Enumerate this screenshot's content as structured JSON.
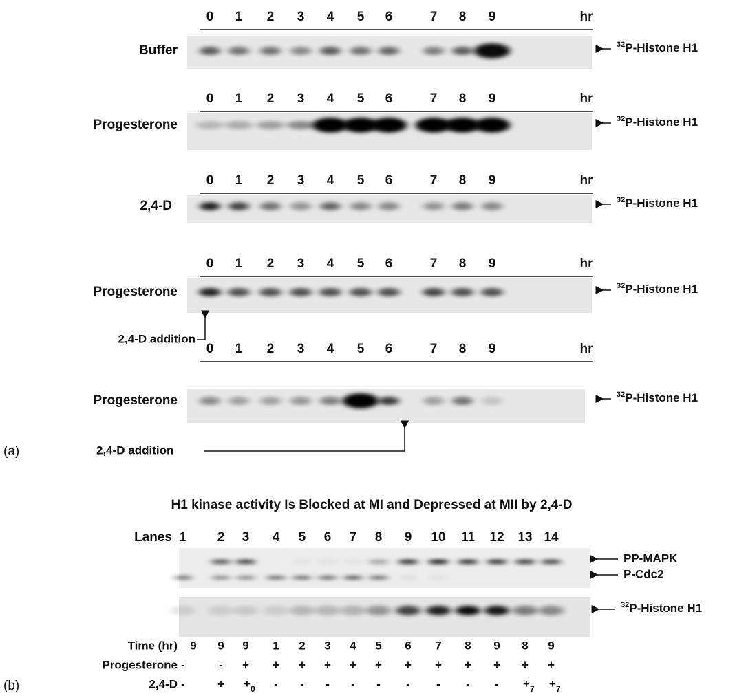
{
  "panel_a": {
    "label": "(a)",
    "blots": [
      {
        "lanes": [
          "0",
          "1",
          "2",
          "3",
          "4",
          "5",
          "6",
          "7",
          "8",
          "9"
        ],
        "unit": "hr",
        "row_label": "Buffer",
        "marker": {
          "sup": "32",
          "text": "P-Histone H1"
        }
      },
      {
        "lanes": [
          "0",
          "1",
          "2",
          "3",
          "4",
          "5",
          "6",
          "7",
          "8",
          "9"
        ],
        "unit": "hr",
        "row_label": "Progesterone",
        "marker": {
          "sup": "32",
          "text": "P-Histone H1"
        }
      },
      {
        "lanes": [
          "0",
          "1",
          "2",
          "3",
          "4",
          "5",
          "6",
          "7",
          "8",
          "9"
        ],
        "unit": "hr",
        "row_label": "2,4-D",
        "marker": {
          "sup": "32",
          "text": "P-Histone H1"
        }
      },
      {
        "lanes": [
          "0",
          "1",
          "2",
          "3",
          "4",
          "5",
          "6",
          "7",
          "8",
          "9"
        ],
        "unit": "hr",
        "row_label": "Progesterone",
        "marker": {
          "sup": "32",
          "text": "P-Histone H1"
        },
        "addition": "2,4-D addition"
      },
      {
        "lanes": [
          "0",
          "1",
          "2",
          "3",
          "4",
          "5",
          "6",
          "7",
          "8",
          "9"
        ],
        "unit": "hr",
        "row_label": "Progesterone",
        "marker": {
          "sup": "32",
          "text": "P-Histone H1"
        },
        "addition": "2,4-D addition"
      }
    ]
  },
  "panel_b": {
    "label": "(b)",
    "title": "H1 kinase activity Is Blocked at MI and Depressed at MII by 2,4-D",
    "lanes_label": "Lanes",
    "lanes": [
      "1",
      "2",
      "3",
      "4",
      "5",
      "6",
      "7",
      "8",
      "9",
      "10",
      "11",
      "12",
      "13",
      "14"
    ],
    "markers": {
      "pp_mapk": "PP-MAPK",
      "p_cdc2": "P-Cdc2",
      "histone": {
        "sup": "32",
        "text": "P-Histone H1"
      }
    },
    "rows": [
      {
        "label": "Time (hr)",
        "values": [
          "9",
          "9",
          "9",
          "1",
          "2",
          "3",
          "4",
          "5",
          "6",
          "7",
          "8",
          "9",
          "8",
          "9"
        ]
      },
      {
        "label": "Progesterone",
        "values": [
          "-",
          "-",
          "+",
          "+",
          "+",
          "+",
          "+",
          "+",
          "+",
          "+",
          "+",
          "+",
          "+",
          "+"
        ]
      },
      {
        "label": "2,4-D",
        "values": [
          "-",
          "+",
          {
            "text": "+",
            "sub": "0"
          },
          "-",
          "-",
          "-",
          "-",
          "-",
          "-",
          "-",
          "-",
          "-",
          {
            "text": "+",
            "sub": "7"
          },
          {
            "text": "+",
            "sub": "7"
          }
        ]
      }
    ]
  }
}
